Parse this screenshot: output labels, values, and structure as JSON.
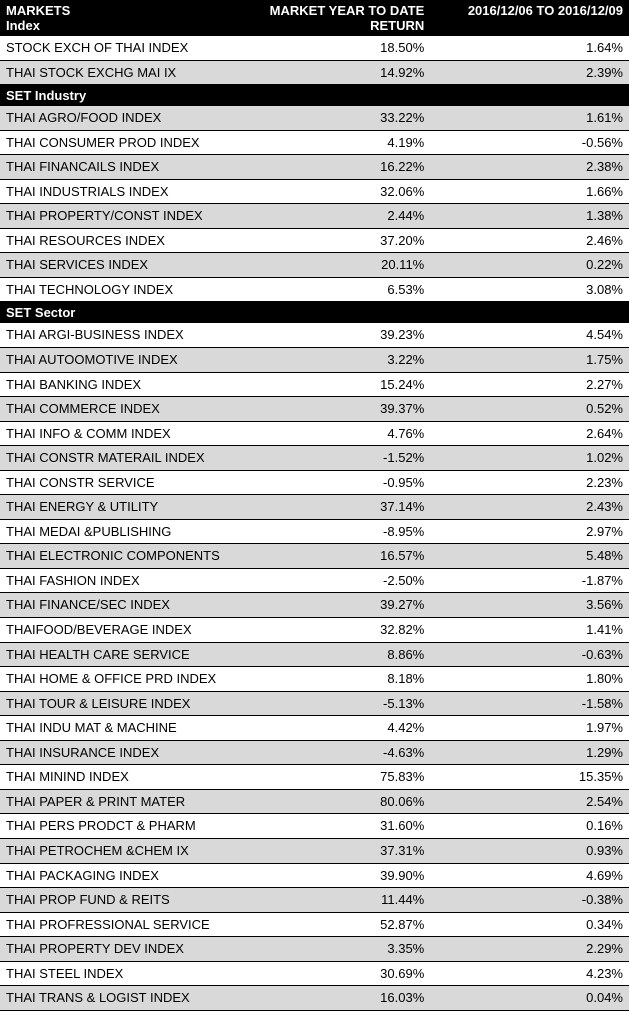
{
  "header": {
    "col1_line1": "MARKETS",
    "col1_line2": "Index",
    "col2": "MARKET YEAR TO DATE RETURN",
    "col3": "2016/12/06 TO 2016/12/09"
  },
  "sections": [
    {
      "title": null,
      "rows": [
        {
          "name": "STOCK EXCH OF THAI INDEX",
          "ytd": "18.50%",
          "per": "1.64%",
          "alt": false
        },
        {
          "name": "THAI STOCK EXCHG MAI IX",
          "ytd": "14.92%",
          "per": "2.39%",
          "alt": true
        }
      ]
    },
    {
      "title": "SET Industry",
      "rows": [
        {
          "name": "THAI AGRO/FOOD INDEX",
          "ytd": "33.22%",
          "per": "1.61%",
          "alt": true
        },
        {
          "name": "THAI CONSUMER PROD INDEX",
          "ytd": "4.19%",
          "per": "-0.56%",
          "alt": false
        },
        {
          "name": "THAI FINANCAILS INDEX",
          "ytd": "16.22%",
          "per": "2.38%",
          "alt": true
        },
        {
          "name": "THAI INDUSTRIALS INDEX",
          "ytd": "32.06%",
          "per": "1.66%",
          "alt": false
        },
        {
          "name": "THAI PROPERTY/CONST INDEX",
          "ytd": "2.44%",
          "per": "1.38%",
          "alt": true
        },
        {
          "name": "THAI RESOURCES INDEX",
          "ytd": "37.20%",
          "per": "2.46%",
          "alt": false
        },
        {
          "name": "THAI SERVICES INDEX",
          "ytd": "20.11%",
          "per": "0.22%",
          "alt": true
        },
        {
          "name": "THAI TECHNOLOGY INDEX",
          "ytd": "6.53%",
          "per": "3.08%",
          "alt": false
        }
      ]
    },
    {
      "title": "SET Sector",
      "rows": [
        {
          "name": "THAI ARGI-BUSINESS INDEX",
          "ytd": "39.23%",
          "per": "4.54%",
          "alt": false
        },
        {
          "name": "THAI AUTOOMOTIVE INDEX",
          "ytd": "3.22%",
          "per": "1.75%",
          "alt": true
        },
        {
          "name": "THAI BANKING INDEX",
          "ytd": "15.24%",
          "per": "2.27%",
          "alt": false
        },
        {
          "name": "THAI COMMERCE INDEX",
          "ytd": "39.37%",
          "per": "0.52%",
          "alt": true
        },
        {
          "name": "THAI INFO & COMM INDEX",
          "ytd": "4.76%",
          "per": "2.64%",
          "alt": false
        },
        {
          "name": "THAI CONSTR MATERAIL INDEX",
          "ytd": "-1.52%",
          "per": "1.02%",
          "alt": true
        },
        {
          "name": "THAI CONSTR SERVICE",
          "ytd": "-0.95%",
          "per": "2.23%",
          "alt": false
        },
        {
          "name": "THAI ENERGY & UTILITY",
          "ytd": "37.14%",
          "per": "2.43%",
          "alt": true
        },
        {
          "name": "THAI MEDAI &PUBLISHING",
          "ytd": "-8.95%",
          "per": "2.97%",
          "alt": false
        },
        {
          "name": "THAI ELECTRONIC COMPONENTS",
          "ytd": "16.57%",
          "per": "5.48%",
          "alt": true
        },
        {
          "name": "THAI FASHION INDEX",
          "ytd": "-2.50%",
          "per": "-1.87%",
          "alt": false
        },
        {
          "name": "THAI FINANCE/SEC INDEX",
          "ytd": "39.27%",
          "per": "3.56%",
          "alt": true
        },
        {
          "name": "THAIFOOD/BEVERAGE INDEX",
          "ytd": "32.82%",
          "per": "1.41%",
          "alt": false
        },
        {
          "name": "THAI HEALTH CARE SERVICE",
          "ytd": "8.86%",
          "per": "-0.63%",
          "alt": true
        },
        {
          "name": "THAI HOME & OFFICE PRD INDEX",
          "ytd": "8.18%",
          "per": "1.80%",
          "alt": false
        },
        {
          "name": "THAI TOUR & LEISURE INDEX",
          "ytd": "-5.13%",
          "per": "-1.58%",
          "alt": true
        },
        {
          "name": "THAI INDU MAT & MACHINE",
          "ytd": "4.42%",
          "per": "1.97%",
          "alt": false
        },
        {
          "name": "THAI INSURANCE INDEX",
          "ytd": "-4.63%",
          "per": "1.29%",
          "alt": true
        },
        {
          "name": "THAI MININD INDEX",
          "ytd": "75.83%",
          "per": "15.35%",
          "alt": false
        },
        {
          "name": "THAI PAPER & PRINT MATER",
          "ytd": "80.06%",
          "per": "2.54%",
          "alt": true
        },
        {
          "name": "THAI PERS PRODCT & PHARM",
          "ytd": "31.60%",
          "per": "0.16%",
          "alt": false
        },
        {
          "name": "THAI PETROCHEM &CHEM IX",
          "ytd": "37.31%",
          "per": "0.93%",
          "alt": true
        },
        {
          "name": "THAI PACKAGING INDEX",
          "ytd": "39.90%",
          "per": "4.69%",
          "alt": false
        },
        {
          "name": "THAI PROP FUND & REITS",
          "ytd": "11.44%",
          "per": "-0.38%",
          "alt": true
        },
        {
          "name": "THAI PROFRESSIONAL SERVICE",
          "ytd": "52.87%",
          "per": "0.34%",
          "alt": false
        },
        {
          "name": "THAI PROPERTY DEV INDEX",
          "ytd": "3.35%",
          "per": "2.29%",
          "alt": true
        },
        {
          "name": "THAI STEEL INDEX",
          "ytd": "30.69%",
          "per": "4.23%",
          "alt": false
        },
        {
          "name": "THAI TRANS & LOGIST INDEX",
          "ytd": "16.03%",
          "per": "0.04%",
          "alt": true
        }
      ]
    }
  ]
}
